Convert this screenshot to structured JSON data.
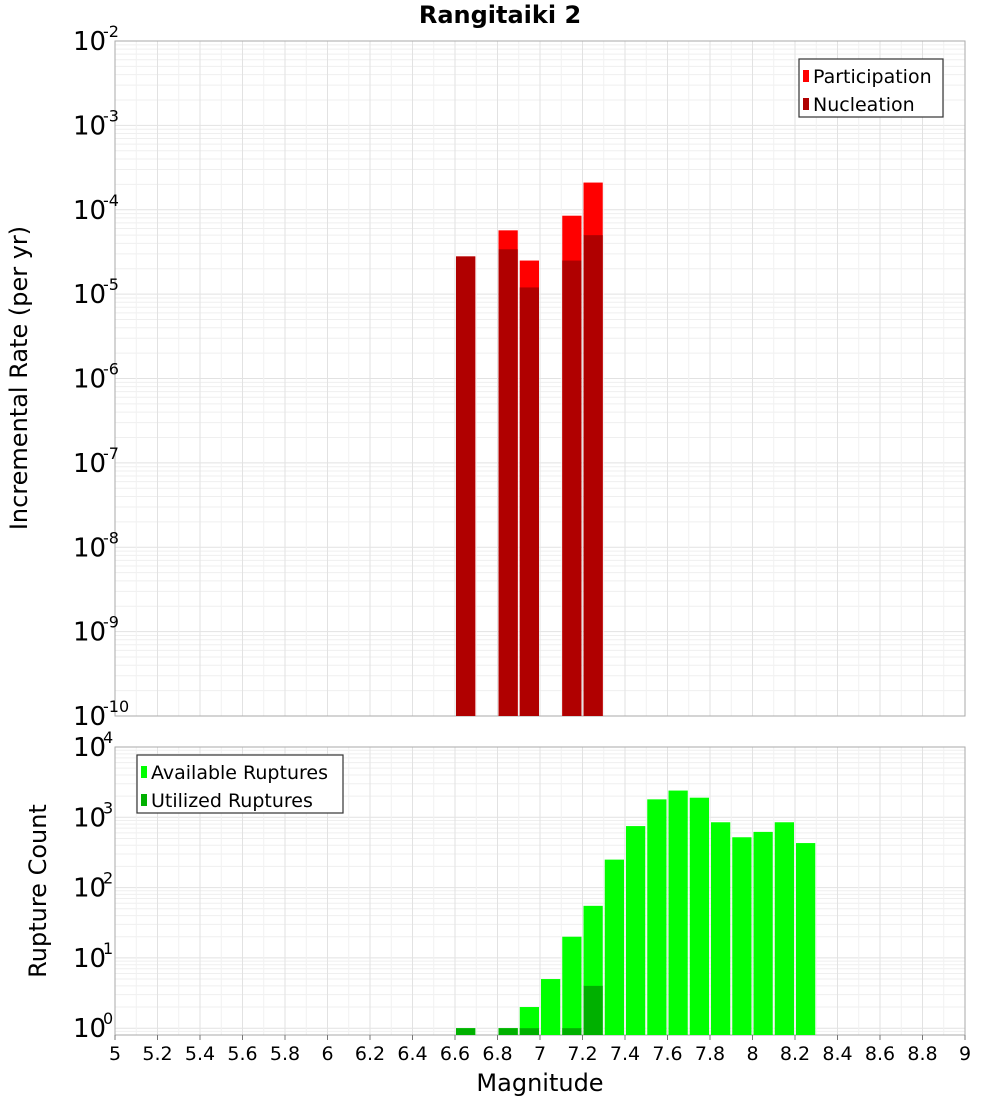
{
  "chart_data": [
    {
      "type": "bar",
      "title": "Rangitaiki 2",
      "ylabel": "Incremental Rate (per yr)",
      "yscale": "log",
      "ylim": [
        1e-10,
        0.01
      ],
      "xlim": [
        5,
        9
      ],
      "bin_width": 0.1,
      "y_ticks": [
        {
          "base": "10",
          "exp": "-10"
        },
        {
          "base": "10",
          "exp": "-9"
        },
        {
          "base": "10",
          "exp": "-8"
        },
        {
          "base": "10",
          "exp": "-7"
        },
        {
          "base": "10",
          "exp": "-6"
        },
        {
          "base": "10",
          "exp": "-5"
        },
        {
          "base": "10",
          "exp": "-4"
        },
        {
          "base": "10",
          "exp": "-3"
        },
        {
          "base": "10",
          "exp": "-2"
        }
      ],
      "legend_position": "top-right",
      "series": [
        {
          "name": "Participation",
          "color": "#ff0000",
          "x": [
            6.65,
            6.85,
            6.95,
            7.15,
            7.25
          ],
          "values": [
            2.8e-05,
            5.7e-05,
            2.5e-05,
            8.5e-05,
            0.00021
          ]
        },
        {
          "name": "Nucleation",
          "color": "#b00000",
          "x": [
            6.65,
            6.85,
            6.95,
            7.15,
            7.25
          ],
          "values": [
            2.8e-05,
            3.4e-05,
            1.2e-05,
            2.5e-05,
            5e-05
          ]
        }
      ]
    },
    {
      "type": "bar",
      "xlabel": "Magnitude",
      "ylabel": "Rupture Count",
      "yscale": "log",
      "ylim": [
        0.8,
        10000
      ],
      "xlim": [
        5,
        9
      ],
      "bin_width": 0.1,
      "y_ticks": [
        {
          "base": "10",
          "exp": "0"
        },
        {
          "base": "10",
          "exp": "1"
        },
        {
          "base": "10",
          "exp": "2"
        },
        {
          "base": "10",
          "exp": "3"
        },
        {
          "base": "10",
          "exp": "4"
        }
      ],
      "x_ticks": [
        "5",
        "5.2",
        "5.4",
        "5.6",
        "5.8",
        "6",
        "6.2",
        "6.4",
        "6.6",
        "6.8",
        "7",
        "7.2",
        "7.4",
        "7.6",
        "7.8",
        "8",
        "8.2",
        "8.4",
        "8.6",
        "8.8",
        "9"
      ],
      "legend_position": "top-left",
      "series": [
        {
          "name": "Available Ruptures",
          "color": "#00ff00",
          "x": [
            6.65,
            6.85,
            6.95,
            7.05,
            7.15,
            7.25,
            7.35,
            7.45,
            7.55,
            7.65,
            7.75,
            7.85,
            7.95,
            8.05,
            8.15,
            8.25
          ],
          "values": [
            1,
            1,
            2,
            5,
            20,
            55,
            250,
            750,
            1800,
            2400,
            1900,
            850,
            520,
            620,
            850,
            430
          ]
        },
        {
          "name": "Utilized Ruptures",
          "color": "#00b000",
          "x": [
            6.65,
            6.85,
            6.95,
            7.15,
            7.25
          ],
          "values": [
            1,
            1,
            1,
            1,
            4
          ]
        }
      ]
    }
  ]
}
